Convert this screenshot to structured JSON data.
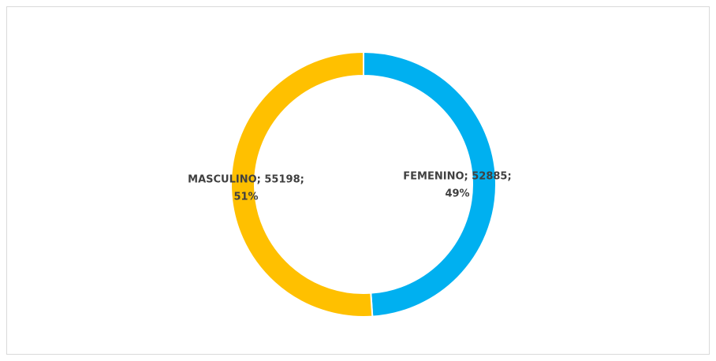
{
  "chart_data": {
    "type": "pie",
    "values": [
      52885,
      55198
    ],
    "value_labels": [
      [
        "FEMENINO; 52885;",
        "49%"
      ],
      [
        "MASCULINO; 55198;",
        "51%"
      ]
    ],
    "colors": [
      "#00b0f0",
      "#ffc000"
    ],
    "donut": true
  }
}
